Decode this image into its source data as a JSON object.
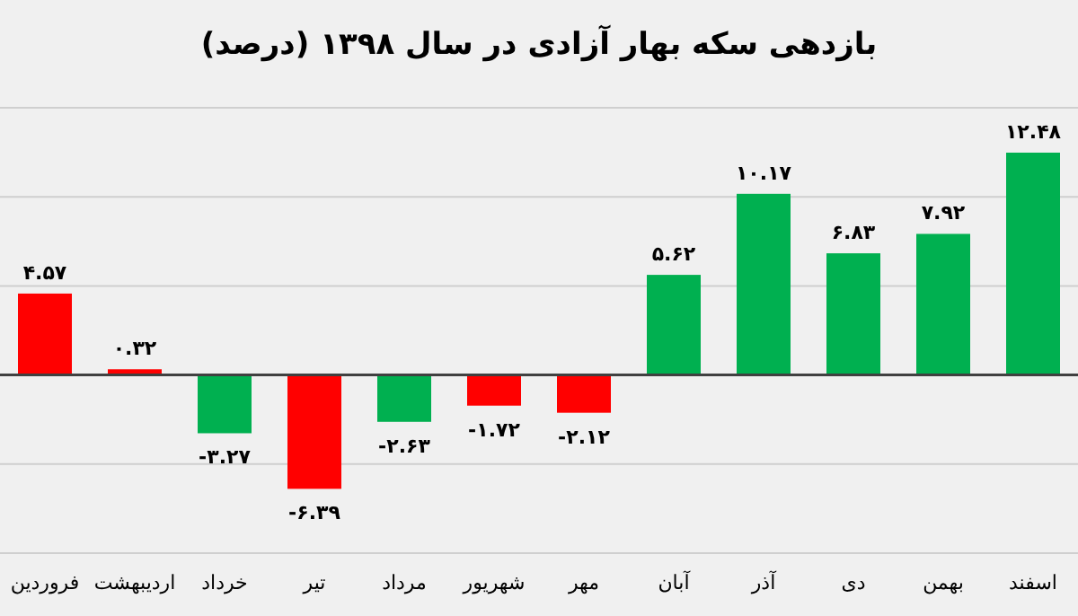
{
  "chart_data": {
    "type": "bar",
    "title": "بازدهی سکه بهار آزادی در سال ۱۳۹۸ (درصد)",
    "categories": [
      "فروردین",
      "اردیبهشت",
      "خرداد",
      "تیر",
      "مرداد",
      "شهریور",
      "مهر",
      "آبان",
      "آذر",
      "دی",
      "بهمن",
      "اسفند"
    ],
    "values": [
      4.57,
      0.32,
      -3.27,
      -6.39,
      -2.63,
      -1.72,
      -2.12,
      5.62,
      10.17,
      6.83,
      7.92,
      12.48
    ],
    "colors": [
      "#ff0000",
      "#ff0000",
      "#00b050",
      "#ff0000",
      "#00b050",
      "#ff0000",
      "#ff0000",
      "#00b050",
      "#00b050",
      "#00b050",
      "#00b050",
      "#00b050"
    ],
    "value_labels": [
      "۴.۵۷",
      "۰.۳۲",
      "-۳.۲۷",
      "-۶.۳۹",
      "-۲.۶۳",
      "-۱.۷۲",
      "-۲.۱۲",
      "۵.۶۲",
      "۱۰.۱۷",
      "۶.۸۳",
      "۷.۹۲",
      "۱۲.۴۸"
    ],
    "ylim": [
      -10,
      15
    ],
    "yticks": [
      {
        "value": -10,
        "label": null
      },
      {
        "value": -5,
        "label": null
      },
      {
        "value": 0,
        "label": null
      },
      {
        "value": 5,
        "label": null
      },
      {
        "value": 10,
        "label": null
      },
      {
        "value": 15,
        "label": null
      }
    ],
    "grid": "y",
    "tick_labels": "x"
  }
}
